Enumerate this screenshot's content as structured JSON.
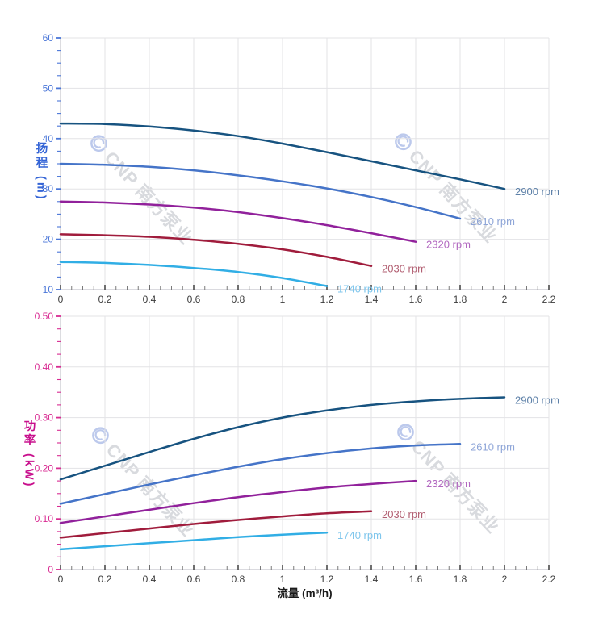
{
  "watermark": {
    "text": "CNP 南方泵业",
    "text_color": "#d8dade",
    "logo_color": "#bcc9ec"
  },
  "chart_data": [
    {
      "type": "line",
      "title": "",
      "xlabel": "流量 (m³/h)",
      "ylabel": "扬程 (m)",
      "xlim": [
        0,
        2.2
      ],
      "ylim": [
        10,
        60
      ],
      "grid": true,
      "legend": "inline-end-labels",
      "axis_color": "#4a76d8",
      "x_tick_color": "#3a3a3a",
      "x_major_ticks": {
        "values": [
          0,
          0.2,
          0.4,
          0.6,
          0.8,
          1,
          1.2,
          1.4,
          1.6,
          1.8,
          2,
          2.2
        ],
        "labels": [
          "0",
          "0.2",
          "0.4",
          "0.6",
          "0.8",
          "1",
          "1.2",
          "1.4",
          "1.6",
          "1.8",
          "2",
          "2.2"
        ]
      },
      "x_minor_step": 0.05,
      "y_major_ticks": {
        "values": [
          10,
          20,
          30,
          40,
          50,
          60
        ],
        "labels": [
          "10",
          "20",
          "30",
          "40",
          "50",
          "60"
        ]
      },
      "y_minor_step": 2.5,
      "series": [
        {
          "name": "2900 rpm",
          "color": "#175380",
          "label_color": "#5d80a8",
          "x": [
            0,
            0.2,
            0.4,
            0.6,
            0.8,
            1,
            1.2,
            1.4,
            1.6,
            1.8,
            2
          ],
          "y": [
            43,
            42.9,
            42.4,
            41.6,
            40.5,
            39.0,
            37.3,
            35.5,
            33.7,
            31.9,
            30.0
          ]
        },
        {
          "name": "2610 rpm",
          "color": "#4574c8",
          "label_color": "#8fa6d8",
          "x": [
            0,
            0.2,
            0.4,
            0.6,
            0.8,
            1,
            1.2,
            1.4,
            1.6,
            1.8
          ],
          "y": [
            35,
            34.8,
            34.4,
            33.7,
            32.7,
            31.5,
            30.1,
            28.4,
            26.4,
            24.1
          ]
        },
        {
          "name": "2320 rpm",
          "color": "#91219b",
          "label_color": "#b268c0",
          "x": [
            0,
            0.2,
            0.4,
            0.6,
            0.8,
            1,
            1.2,
            1.4,
            1.6
          ],
          "y": [
            27.5,
            27.3,
            26.9,
            26.3,
            25.4,
            24.2,
            22.8,
            21.2,
            19.5
          ]
        },
        {
          "name": "2030 rpm",
          "color": "#a01c3c",
          "label_color": "#b25f72",
          "x": [
            0,
            0.2,
            0.4,
            0.6,
            0.8,
            1,
            1.2,
            1.4
          ],
          "y": [
            21,
            20.8,
            20.5,
            19.9,
            19.1,
            18.0,
            16.5,
            14.7
          ]
        },
        {
          "name": "1740 rpm",
          "color": "#31aee5",
          "label_color": "#7fc6ec",
          "x": [
            0,
            0.2,
            0.4,
            0.6,
            0.8,
            1,
            1.2
          ],
          "y": [
            15.5,
            15.3,
            14.9,
            14.3,
            13.5,
            12.3,
            10.7
          ]
        }
      ]
    },
    {
      "type": "line",
      "title": "",
      "xlabel": "流量 (m³/h)",
      "ylabel": "功率 (kW)",
      "xlim": [
        0,
        2.2
      ],
      "ylim": [
        0,
        0.5
      ],
      "grid": true,
      "legend": "inline-end-labels",
      "axis_color": "#d92b92",
      "x_tick_color": "#3a3a3a",
      "x_major_ticks": {
        "values": [
          0,
          0.2,
          0.4,
          0.6,
          0.8,
          1,
          1.2,
          1.4,
          1.6,
          1.8,
          2,
          2.2
        ],
        "labels": [
          "0",
          "0.2",
          "0.4",
          "0.6",
          "0.8",
          "1",
          "1.2",
          "1.4",
          "1.6",
          "1.8",
          "2",
          "2.2"
        ]
      },
      "x_minor_step": 0.05,
      "y_major_ticks": {
        "values": [
          0,
          0.1,
          0.2,
          0.3,
          0.4,
          0.5
        ],
        "labels": [
          "0",
          "0.10",
          "0.20",
          "0.30",
          "0.40",
          "0.50"
        ]
      },
      "y_minor_step": 0.025,
      "series": [
        {
          "name": "2900 rpm",
          "color": "#175380",
          "label_color": "#5d80a8",
          "x": [
            0,
            0.2,
            0.4,
            0.6,
            0.8,
            1,
            1.2,
            1.4,
            1.6,
            1.8,
            2
          ],
          "y": [
            0.178,
            0.205,
            0.232,
            0.258,
            0.281,
            0.3,
            0.314,
            0.325,
            0.332,
            0.337,
            0.34
          ]
        },
        {
          "name": "2610 rpm",
          "color": "#4574c8",
          "label_color": "#8fa6d8",
          "x": [
            0,
            0.2,
            0.4,
            0.6,
            0.8,
            1,
            1.2,
            1.4,
            1.6,
            1.8
          ],
          "y": [
            0.13,
            0.149,
            0.168,
            0.186,
            0.203,
            0.218,
            0.23,
            0.239,
            0.245,
            0.248
          ]
        },
        {
          "name": "2320 rpm",
          "color": "#91219b",
          "label_color": "#b268c0",
          "x": [
            0,
            0.2,
            0.4,
            0.6,
            0.8,
            1,
            1.2,
            1.4,
            1.6
          ],
          "y": [
            0.092,
            0.105,
            0.118,
            0.131,
            0.143,
            0.153,
            0.162,
            0.169,
            0.175
          ]
        },
        {
          "name": "2030 rpm",
          "color": "#a01c3c",
          "label_color": "#b25f72",
          "x": [
            0,
            0.2,
            0.4,
            0.6,
            0.8,
            1,
            1.2,
            1.4
          ],
          "y": [
            0.063,
            0.072,
            0.081,
            0.09,
            0.098,
            0.105,
            0.111,
            0.115
          ]
        },
        {
          "name": "1740 rpm",
          "color": "#31aee5",
          "label_color": "#7fc6ec",
          "x": [
            0,
            0.2,
            0.4,
            0.6,
            0.8,
            1,
            1.2
          ],
          "y": [
            0.04,
            0.046,
            0.052,
            0.058,
            0.064,
            0.069,
            0.073
          ]
        }
      ]
    }
  ]
}
